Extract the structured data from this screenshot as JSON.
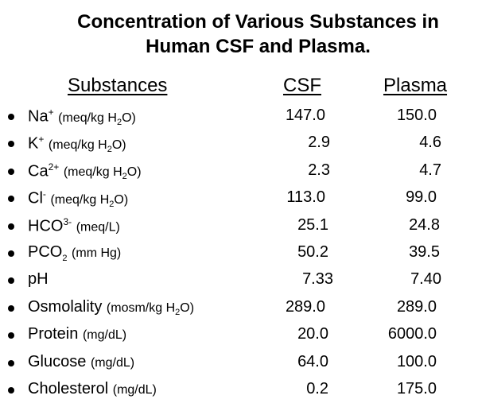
{
  "title": {
    "line1": "Concentration of Various Substances in",
    "line2": "Human CSF and Plasma."
  },
  "headers": {
    "substances": "Substances",
    "csf": "CSF",
    "plasma": "Plasma"
  },
  "rows": [
    {
      "name": "Na",
      "sup": "+",
      "unit_pre": "(meq/kg H",
      "unit_sub": "2",
      "unit_post": "O)",
      "csf": "147.0",
      "plasma": "150.0"
    },
    {
      "name": "K",
      "sup": "+",
      "unit_pre": "(meq/kg H",
      "unit_sub": "2",
      "unit_post": "O)",
      "csf": "2.9",
      "plasma": "4.6"
    },
    {
      "name": "Ca",
      "sup": "2+",
      "unit_pre": "(meq/kg H",
      "unit_sub": "2",
      "unit_post": "O)",
      "csf": "2.3",
      "plasma": "4.7"
    },
    {
      "name": "Cl",
      "sup": "-",
      "unit_pre": "(meq/kg H",
      "unit_sub": "2",
      "unit_post": "O)",
      "csf": "113.0",
      "plasma": "99.0"
    },
    {
      "name": "HCO",
      "sup": "3-",
      "unit_pre": "(meq/L)",
      "unit_sub": "",
      "unit_post": "",
      "csf": "25.1",
      "plasma": "24.8"
    },
    {
      "name": "PCO",
      "sub": "2",
      "unit_pre": "(mm Hg)",
      "unit_sub": "",
      "unit_post": "",
      "csf": "50.2",
      "plasma": "39.5"
    },
    {
      "name": "pH",
      "unit_pre": "",
      "unit_sub": "",
      "unit_post": "",
      "csf": "7.33",
      "plasma": "7.40"
    },
    {
      "name": "Osmolality",
      "unit_pre": "(mosm/kg H",
      "unit_sub": "2",
      "unit_post": "O)",
      "csf": "289.0",
      "plasma": "289.0"
    },
    {
      "name": "Protein",
      "unit_pre": "(mg/dL)",
      "unit_sub": "",
      "unit_post": "",
      "csf": "20.0",
      "plasma": "6000.0"
    },
    {
      "name": "Glucose",
      "unit_pre": "(mg/dL)",
      "unit_sub": "",
      "unit_post": "",
      "csf": "64.0",
      "plasma": "100.0"
    },
    {
      "name": "Cholesterol",
      "unit_pre": "(mg/dL)",
      "unit_sub": "",
      "unit_post": "",
      "csf": "0.2",
      "plasma": "175.0"
    }
  ]
}
